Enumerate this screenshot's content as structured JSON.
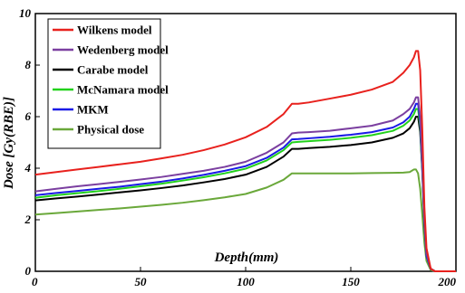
{
  "chart_data": {
    "type": "line",
    "xlabel": "Depth(mm)",
    "ylabel": "Dose [Gy(RBE)]",
    "xlim": [
      0,
      200
    ],
    "ylim": [
      0,
      10
    ],
    "xticks": [
      0,
      50,
      100,
      150,
      200
    ],
    "yticks": [
      0,
      2,
      4,
      6,
      8,
      10
    ],
    "grid": false,
    "legend_position": "top-left",
    "series": [
      {
        "name": "Wilkens model",
        "color": "#e8211d",
        "x": [
          0,
          10,
          20,
          30,
          40,
          50,
          60,
          70,
          80,
          90,
          100,
          110,
          118,
          122,
          125,
          130,
          140,
          150,
          160,
          170,
          175,
          178,
          180,
          181,
          182,
          183,
          184,
          185,
          186,
          188,
          190,
          200
        ],
        "y": [
          3.75,
          3.85,
          3.95,
          4.05,
          4.15,
          4.25,
          4.38,
          4.52,
          4.7,
          4.92,
          5.2,
          5.6,
          6.1,
          6.5,
          6.5,
          6.55,
          6.7,
          6.85,
          7.05,
          7.35,
          7.7,
          8.0,
          8.3,
          8.55,
          8.55,
          7.8,
          5.5,
          2.5,
          0.9,
          0.1,
          0,
          0
        ]
      },
      {
        "name": "Wedenberg model",
        "color": "#7b3fa0",
        "x": [
          0,
          10,
          20,
          30,
          40,
          50,
          60,
          70,
          80,
          90,
          100,
          110,
          118,
          122,
          125,
          130,
          140,
          150,
          160,
          170,
          175,
          178,
          180,
          181,
          182,
          183,
          184,
          185,
          186,
          188,
          190,
          200
        ],
        "y": [
          3.1,
          3.2,
          3.3,
          3.38,
          3.47,
          3.56,
          3.66,
          3.78,
          3.9,
          4.05,
          4.25,
          4.6,
          5.0,
          5.35,
          5.38,
          5.4,
          5.45,
          5.55,
          5.65,
          5.85,
          6.1,
          6.3,
          6.55,
          6.75,
          6.75,
          6.0,
          4.3,
          2.0,
          0.7,
          0.1,
          0,
          0
        ]
      },
      {
        "name": "Carabe model",
        "color": "#000000",
        "x": [
          0,
          10,
          20,
          30,
          40,
          50,
          60,
          70,
          80,
          90,
          100,
          110,
          118,
          122,
          125,
          130,
          140,
          150,
          160,
          170,
          175,
          178,
          180,
          181,
          182,
          183,
          184,
          185,
          186,
          188,
          190,
          200
        ],
        "y": [
          2.75,
          2.83,
          2.9,
          2.98,
          3.06,
          3.14,
          3.23,
          3.33,
          3.45,
          3.58,
          3.75,
          4.05,
          4.45,
          4.75,
          4.75,
          4.78,
          4.83,
          4.9,
          5.0,
          5.18,
          5.35,
          5.55,
          5.8,
          6.0,
          6.0,
          5.4,
          3.9,
          1.8,
          0.6,
          0.1,
          0,
          0
        ]
      },
      {
        "name": "McNamara model",
        "color": "#22d11c",
        "x": [
          0,
          10,
          20,
          30,
          40,
          50,
          60,
          70,
          80,
          90,
          100,
          110,
          118,
          122,
          125,
          130,
          140,
          150,
          160,
          170,
          175,
          178,
          180,
          181,
          182,
          183,
          184,
          185,
          186,
          188,
          190,
          200
        ],
        "y": [
          2.85,
          2.95,
          3.03,
          3.11,
          3.2,
          3.3,
          3.4,
          3.52,
          3.65,
          3.8,
          3.98,
          4.3,
          4.7,
          5.0,
          5.02,
          5.05,
          5.1,
          5.18,
          5.28,
          5.45,
          5.65,
          5.85,
          6.1,
          6.3,
          6.3,
          5.6,
          4.0,
          1.9,
          0.6,
          0.1,
          0,
          0
        ]
      },
      {
        "name": "MKM",
        "color": "#1a1ae6",
        "x": [
          0,
          10,
          20,
          30,
          40,
          50,
          60,
          70,
          80,
          90,
          100,
          110,
          118,
          122,
          125,
          130,
          140,
          150,
          160,
          170,
          175,
          178,
          180,
          181,
          182,
          183,
          184,
          185,
          186,
          188,
          190,
          200
        ],
        "y": [
          2.95,
          3.04,
          3.12,
          3.2,
          3.28,
          3.38,
          3.48,
          3.6,
          3.74,
          3.9,
          4.08,
          4.4,
          4.8,
          5.12,
          5.13,
          5.16,
          5.22,
          5.3,
          5.4,
          5.58,
          5.78,
          6.0,
          6.3,
          6.5,
          6.5,
          5.8,
          4.1,
          1.9,
          0.6,
          0.1,
          0,
          0
        ]
      },
      {
        "name": "Physical dose",
        "color": "#6aa83a",
        "x": [
          0,
          10,
          20,
          30,
          40,
          50,
          60,
          70,
          80,
          90,
          100,
          110,
          118,
          122,
          125,
          130,
          140,
          150,
          160,
          170,
          175,
          178,
          180,
          181,
          182,
          183,
          184,
          185,
          186,
          188,
          190,
          200
        ],
        "y": [
          2.2,
          2.26,
          2.32,
          2.38,
          2.44,
          2.51,
          2.58,
          2.66,
          2.76,
          2.87,
          3.0,
          3.25,
          3.55,
          3.8,
          3.8,
          3.8,
          3.8,
          3.8,
          3.81,
          3.82,
          3.83,
          3.85,
          3.95,
          3.95,
          3.8,
          3.2,
          2.2,
          1.1,
          0.4,
          0.05,
          0,
          0
        ]
      }
    ]
  }
}
